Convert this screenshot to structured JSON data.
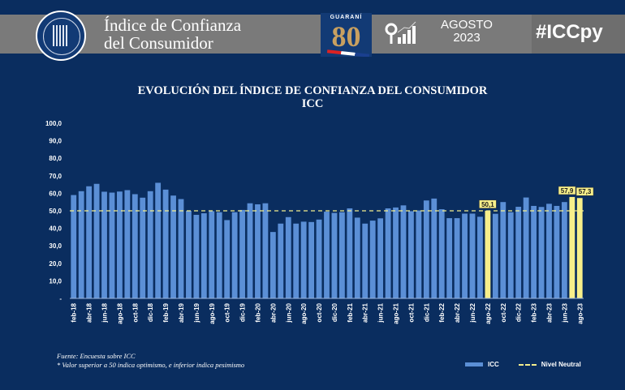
{
  "header": {
    "title_line1": "Índice de Confianza",
    "title_line2": "del Consumidor",
    "seal_text": "BANCO CENTRAL DEL PARAGUAY",
    "anniversary_logo": {
      "top": "GUARANÍ",
      "number": "80",
      "years": "1943 - 2023"
    },
    "stats_icon": "magnifier-bar-chart-icon",
    "month": "AGOSTO",
    "year": "2023",
    "hashtag": "#ICCpy"
  },
  "colors": {
    "background": "#0a2d5f",
    "bar": "#5b8fd6",
    "highlight_bar": "#f7ef8a",
    "neutral_line": "#f3ee8c",
    "header_band": "#7a7a7a"
  },
  "chart_data": {
    "type": "bar",
    "title": "EVOLUCIÓN DEL ÍNDICE DE CONFIANZA DEL CONSUMIDOR",
    "subtitle": "ICC",
    "ylim": [
      0,
      100
    ],
    "yticks": [
      "-",
      "10,0",
      "20,0",
      "30,0",
      "40,0",
      "50,0",
      "60,0",
      "70,0",
      "80,0",
      "90,0",
      "100,0"
    ],
    "grid": false,
    "legend_placement": "bottom-right",
    "categories": [
      "feb-18",
      "mar-18",
      "abr-18",
      "may-18",
      "jun-18",
      "jul-18",
      "ago-18",
      "sep-18",
      "oct-18",
      "nov-18",
      "dic-18",
      "ene-19",
      "feb-19",
      "mar-19",
      "abr-19",
      "may-19",
      "jun-19",
      "jul-19",
      "ago-19",
      "sep-19",
      "oct-19",
      "nov-19",
      "dic-19",
      "ene-20",
      "feb-20",
      "mar-20",
      "abr-20",
      "may-20",
      "jun-20",
      "jul-20",
      "ago-20",
      "sep-20",
      "oct-20",
      "nov-20",
      "dic-20",
      "ene-21",
      "feb-21",
      "mar-21",
      "abr-21",
      "may-21",
      "jun-21",
      "jul-21",
      "ago-21",
      "sep-21",
      "oct-21",
      "nov-21",
      "dic-21",
      "ene-22",
      "feb-22",
      "mar-22",
      "abr-22",
      "may-22",
      "jun-22",
      "jul-22",
      "ago-22",
      "sep-22",
      "oct-22",
      "nov-22",
      "dic-22",
      "ene-23",
      "feb-23",
      "mar-23",
      "abr-23",
      "may-23",
      "jun-23",
      "jul-23",
      "ago-23"
    ],
    "series": [
      {
        "name": "ICC",
        "values": [
          59.0,
          61.2,
          64.0,
          65.4,
          60.9,
          60.4,
          61.0,
          61.8,
          59.5,
          57.5,
          61.2,
          66.0,
          62.1,
          58.7,
          56.7,
          50.0,
          47.7,
          48.6,
          49.8,
          49.2,
          44.7,
          49.2,
          50.5,
          54.3,
          53.7,
          54.3,
          37.9,
          42.7,
          46.4,
          42.7,
          43.8,
          43.6,
          45.0,
          49.5,
          48.8,
          49.2,
          51.4,
          46.1,
          42.7,
          44.4,
          45.7,
          51.4,
          51.9,
          53.1,
          49.8,
          50.2,
          55.9,
          57.0,
          50.9,
          45.8,
          45.8,
          48.4,
          48.4,
          46.6,
          50.1,
          48.3,
          55.0,
          49.2,
          52.3,
          57.6,
          52.8,
          52.2,
          54.0,
          52.8,
          55.0,
          57.9,
          57.3
        ]
      },
      {
        "name": "Nivel Neutral",
        "type": "line",
        "values_constant": 50
      }
    ],
    "highlighted": [
      "ago-22",
      "jul-23",
      "ago-23"
    ],
    "data_labels": [
      {
        "category": "ago-22",
        "label": "50,1"
      },
      {
        "category": "jul-23",
        "label": "57,9"
      },
      {
        "category": "ago-23",
        "label": "57,3"
      }
    ],
    "xtick_labels": [
      "feb-18",
      "abr-18",
      "jun-18",
      "ago-18",
      "oct-18",
      "dic-18",
      "feb-19",
      "abr-19",
      "jun-19",
      "ago-19",
      "oct-19",
      "dic-19",
      "feb-20",
      "abr-20",
      "jun-20",
      "ago-20",
      "oct-20",
      "dic-20",
      "feb-21",
      "abr-21",
      "jun-21",
      "ago-21",
      "oct-21",
      "dic-21",
      "feb-22",
      "abr-22",
      "jun-22",
      "ago-22",
      "oct-22",
      "dic-22",
      "feb-23",
      "abr-23",
      "jun-23",
      "ago-23"
    ]
  },
  "footer": {
    "source": "Fuente: Encuesta sobre ICC",
    "note": "* Valor superior a 50 indica optimismo, e inferior indica pesimismo"
  },
  "legend": {
    "icc": "ICC",
    "neutral": "Nivel Neutral"
  }
}
